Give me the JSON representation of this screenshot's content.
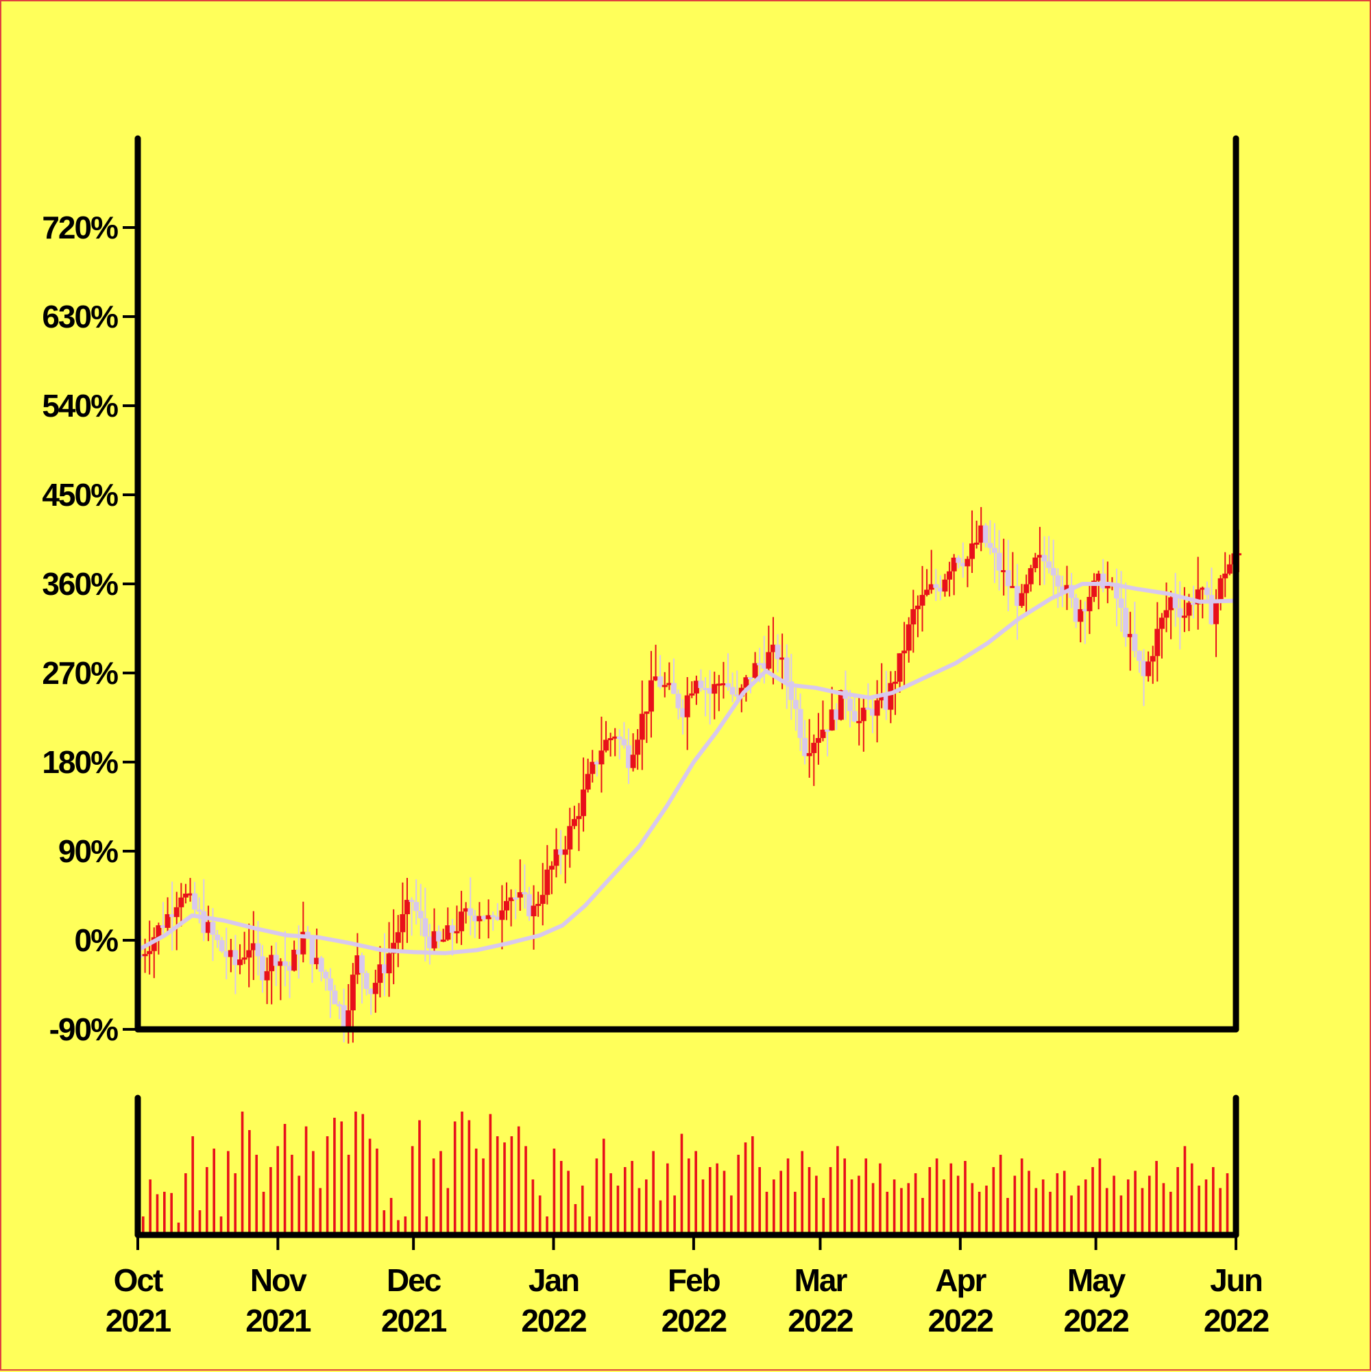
{
  "colors": {
    "background": "#ffff5a",
    "up_candle": "#e8101a",
    "down_candle": "#d8c8ee",
    "moving_average": "#d8c8ee",
    "volume": "#e8101a",
    "axis": "#000000"
  },
  "chart_data": {
    "type": "candlestick",
    "title": "",
    "xlabel": "",
    "ylabel": "",
    "ylim": [
      -90,
      810
    ],
    "y_ticks": [
      "-90%",
      "0%",
      "90%",
      "180%",
      "270%",
      "360%",
      "450%",
      "540%",
      "630%",
      "720%"
    ],
    "y_tick_values": [
      -90,
      0,
      90,
      180,
      270,
      360,
      450,
      540,
      630,
      720
    ],
    "x_ticks": [
      {
        "month": "Oct",
        "year": "2021",
        "date": "2021-10-01"
      },
      {
        "month": "Nov",
        "year": "2021",
        "date": "2021-11-01"
      },
      {
        "month": "Dec",
        "year": "2021",
        "date": "2021-12-01"
      },
      {
        "month": "Jan",
        "year": "2022",
        "date": "2022-01-01"
      },
      {
        "month": "Feb",
        "year": "2022",
        "date": "2022-02-01"
      },
      {
        "month": "Mar",
        "year": "2022",
        "date": "2022-03-01"
      },
      {
        "month": "Apr",
        "year": "2022",
        "date": "2022-04-01"
      },
      {
        "month": "May",
        "year": "2022",
        "date": "2022-05-01"
      },
      {
        "month": "Jun",
        "year": "2022",
        "date": "2022-06-01"
      }
    ],
    "x_range": [
      "2021-10-01",
      "2022-06-01"
    ],
    "close_path": [
      [
        "2021-10-01",
        -15
      ],
      [
        "2021-10-04",
        5
      ],
      [
        "2021-10-07",
        25
      ],
      [
        "2021-10-10",
        50
      ],
      [
        "2021-10-13",
        30
      ],
      [
        "2021-10-16",
        10
      ],
      [
        "2021-10-19",
        -10
      ],
      [
        "2021-10-22",
        -25
      ],
      [
        "2021-10-25",
        -5
      ],
      [
        "2021-10-28",
        -30
      ],
      [
        "2021-10-31",
        -15
      ],
      [
        "2021-11-03",
        -30
      ],
      [
        "2021-11-06",
        5
      ],
      [
        "2021-11-09",
        -25
      ],
      [
        "2021-11-12",
        -45
      ],
      [
        "2021-11-15",
        -80
      ],
      [
        "2021-11-18",
        -20
      ],
      [
        "2021-11-21",
        -50
      ],
      [
        "2021-11-24",
        -25
      ],
      [
        "2021-11-27",
        10
      ],
      [
        "2021-11-30",
        40
      ],
      [
        "2021-12-03",
        5
      ],
      [
        "2021-12-06",
        -5
      ],
      [
        "2021-12-09",
        10
      ],
      [
        "2021-12-12",
        25
      ],
      [
        "2021-12-15",
        30
      ],
      [
        "2021-12-18",
        15
      ],
      [
        "2021-12-21",
        50
      ],
      [
        "2021-12-24",
        40
      ],
      [
        "2021-12-27",
        30
      ],
      [
        "2021-12-30",
        65
      ],
      [
        "2022-01-02",
        90
      ],
      [
        "2022-01-05",
        120
      ],
      [
        "2022-01-08",
        160
      ],
      [
        "2022-01-11",
        195
      ],
      [
        "2022-01-14",
        210
      ],
      [
        "2022-01-17",
        185
      ],
      [
        "2022-01-20",
        225
      ],
      [
        "2022-01-23",
        265
      ],
      [
        "2022-01-26",
        250
      ],
      [
        "2022-01-29",
        235
      ],
      [
        "2022-02-01",
        270
      ],
      [
        "2022-02-04",
        250
      ],
      [
        "2022-02-07",
        265
      ],
      [
        "2022-02-10",
        240
      ],
      [
        "2022-02-13",
        270
      ],
      [
        "2022-02-16",
        285
      ],
      [
        "2022-02-19",
        290
      ],
      [
        "2022-02-22",
        250
      ],
      [
        "2022-02-25",
        195
      ],
      [
        "2022-02-28",
        210
      ],
      [
        "2022-03-03",
        225
      ],
      [
        "2022-03-06",
        250
      ],
      [
        "2022-03-09",
        220
      ],
      [
        "2022-03-12",
        235
      ],
      [
        "2022-03-15",
        240
      ],
      [
        "2022-03-18",
        280
      ],
      [
        "2022-03-21",
        330
      ],
      [
        "2022-03-24",
        350
      ],
      [
        "2022-03-27",
        360
      ],
      [
        "2022-03-30",
        390
      ],
      [
        "2022-04-02",
        385
      ],
      [
        "2022-04-05",
        410
      ],
      [
        "2022-04-08",
        385
      ],
      [
        "2022-04-11",
        360
      ],
      [
        "2022-04-14",
        340
      ],
      [
        "2022-04-17",
        380
      ],
      [
        "2022-04-20",
        385
      ],
      [
        "2022-04-23",
        360
      ],
      [
        "2022-04-26",
        330
      ],
      [
        "2022-04-29",
        350
      ],
      [
        "2022-05-02",
        365
      ],
      [
        "2022-05-05",
        345
      ],
      [
        "2022-05-08",
        300
      ],
      [
        "2022-05-11",
        265
      ],
      [
        "2022-05-14",
        310
      ],
      [
        "2022-05-17",
        345
      ],
      [
        "2022-05-20",
        330
      ],
      [
        "2022-05-23",
        355
      ],
      [
        "2022-05-26",
        330
      ],
      [
        "2022-05-29",
        375
      ],
      [
        "2022-06-01",
        390
      ]
    ],
    "moving_average": [
      [
        "2021-10-01",
        -10
      ],
      [
        "2021-10-07",
        5
      ],
      [
        "2021-10-13",
        25
      ],
      [
        "2021-10-20",
        20
      ],
      [
        "2021-10-27",
        12
      ],
      [
        "2021-11-03",
        5
      ],
      [
        "2021-11-10",
        3
      ],
      [
        "2021-11-17",
        -3
      ],
      [
        "2021-11-24",
        -10
      ],
      [
        "2021-12-01",
        -12
      ],
      [
        "2021-12-08",
        -13
      ],
      [
        "2021-12-15",
        -10
      ],
      [
        "2021-12-22",
        -3
      ],
      [
        "2021-12-29",
        5
      ],
      [
        "2022-01-03",
        15
      ],
      [
        "2022-01-08",
        35
      ],
      [
        "2022-01-14",
        65
      ],
      [
        "2022-01-20",
        95
      ],
      [
        "2022-01-26",
        135
      ],
      [
        "2022-02-01",
        180
      ],
      [
        "2022-02-06",
        210
      ],
      [
        "2022-02-12",
        250
      ],
      [
        "2022-02-17",
        272
      ],
      [
        "2022-02-22",
        258
      ],
      [
        "2022-02-28",
        255
      ],
      [
        "2022-03-05",
        250
      ],
      [
        "2022-03-12",
        245
      ],
      [
        "2022-03-17",
        250
      ],
      [
        "2022-03-24",
        265
      ],
      [
        "2022-03-31",
        280
      ],
      [
        "2022-04-07",
        300
      ],
      [
        "2022-04-14",
        325
      ],
      [
        "2022-04-21",
        345
      ],
      [
        "2022-04-28",
        360
      ],
      [
        "2022-05-04",
        360
      ],
      [
        "2022-05-10",
        355
      ],
      [
        "2022-05-17",
        350
      ],
      [
        "2022-05-24",
        342
      ],
      [
        "2022-06-01",
        343
      ]
    ],
    "volume": {
      "note": "bar heights relative to the tallest bar",
      "rows": [
        0.15,
        0.45,
        0.33,
        0.35,
        0.34,
        0.1,
        0.5,
        0.8,
        0.2,
        0.55,
        0.7,
        0.15,
        0.68,
        0.5,
        1.0,
        0.85,
        0.65,
        0.35,
        0.55,
        0.72,
        0.9,
        0.65,
        0.48,
        0.88,
        0.68,
        0.38,
        0.8,
        0.95,
        0.92,
        0.65,
        1.0,
        0.98,
        0.78,
        0.7,
        0.2,
        0.3,
        0.12,
        0.15,
        0.72,
        0.93,
        0.15,
        0.62,
        0.68,
        0.38,
        0.92,
        1.0,
        0.93,
        0.7,
        0.62,
        0.98,
        0.8,
        0.75,
        0.8,
        0.88,
        0.72,
        0.45,
        0.32,
        0.15,
        0.7,
        0.6,
        0.52,
        0.25,
        0.4,
        0.15,
        0.62,
        0.78,
        0.5,
        0.4,
        0.55,
        0.6,
        0.38,
        0.45,
        0.68,
        0.28,
        0.58,
        0.32,
        0.82,
        0.62,
        0.68,
        0.45,
        0.55,
        0.58,
        0.52,
        0.32,
        0.65,
        0.75,
        0.8,
        0.55,
        0.35,
        0.45,
        0.52,
        0.62,
        0.35,
        0.68,
        0.55,
        0.48,
        0.3,
        0.55,
        0.72,
        0.62,
        0.45,
        0.48,
        0.62,
        0.42,
        0.58,
        0.35,
        0.45,
        0.38,
        0.42,
        0.5,
        0.3,
        0.55,
        0.62,
        0.45,
        0.58,
        0.48,
        0.6,
        0.42,
        0.35,
        0.4,
        0.55,
        0.65,
        0.3,
        0.48,
        0.62,
        0.52,
        0.38,
        0.45,
        0.35,
        0.5,
        0.52,
        0.32,
        0.4,
        0.45,
        0.55,
        0.62,
        0.38,
        0.48,
        0.32,
        0.45,
        0.52,
        0.38,
        0.48,
        0.6,
        0.42,
        0.35,
        0.55,
        0.72,
        0.58,
        0.4,
        0.45,
        0.55,
        0.38,
        0.5
      ]
    }
  }
}
